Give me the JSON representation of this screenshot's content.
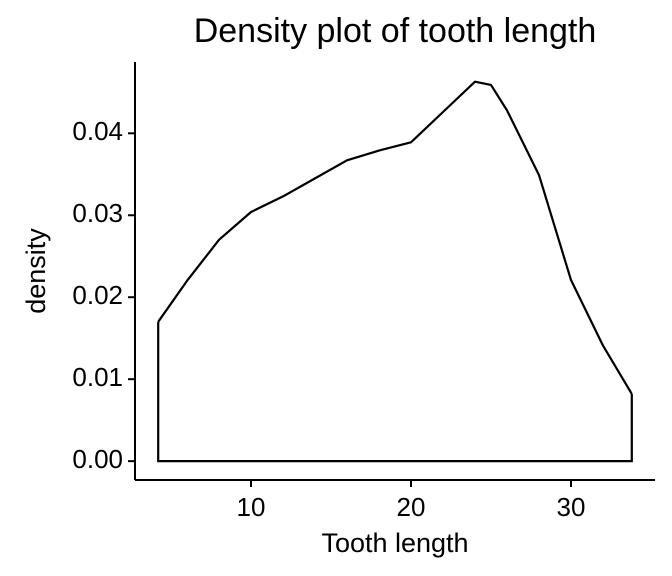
{
  "chart_data": {
    "type": "area",
    "title": "Density plot of tooth length",
    "x_label": "Tooth length",
    "y_label": "density",
    "x": [
      4.2,
      6,
      8,
      10,
      12,
      14,
      16,
      18,
      20,
      22,
      24,
      25,
      26,
      28,
      30,
      32,
      33.8
    ],
    "values": [
      0.017,
      0.022,
      0.027,
      0.0304,
      0.0323,
      0.0345,
      0.0367,
      0.0379,
      0.0389,
      0.0426,
      0.0463,
      0.0459,
      0.0428,
      0.0349,
      0.0221,
      0.0141,
      0.0082
    ],
    "color": "#000000",
    "xlim": [
      2.75,
      35.25
    ],
    "xticks": [
      10,
      20,
      30
    ],
    "ylim": [
      -0.0023,
      0.0487
    ],
    "yticks": [
      {
        "value": 0,
        "label": "0.00"
      },
      0.01,
      0.02,
      0.03,
      0.04
    ],
    "grid": false
  }
}
